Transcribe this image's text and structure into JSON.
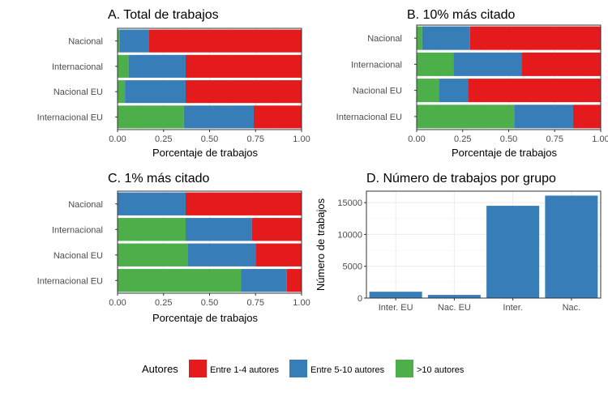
{
  "colors": {
    "c1": "#E41A1C",
    "c2": "#377EB8",
    "c3": "#4DAF4A"
  },
  "legend": {
    "title": "Autores",
    "items": [
      {
        "label": "Entre 1-4 autores",
        "color": "#E41A1C"
      },
      {
        "label": "Entre 5-10 autores",
        "color": "#377EB8"
      },
      {
        "label": ">10 autores",
        "color": "#4DAF4A"
      }
    ]
  },
  "chart_data": [
    {
      "type": "bar",
      "title": "A. Total de trabajos",
      "orientation": "horizontal",
      "stacked": true,
      "categories": [
        "Nacional",
        "Internacional",
        "Nacional EU",
        "Internacional EU"
      ],
      "series": [
        {
          "name": ">10 autores",
          "values": [
            0.01,
            0.06,
            0.04,
            0.36
          ]
        },
        {
          "name": "Entre 5-10 autores",
          "values": [
            0.16,
            0.31,
            0.33,
            0.38
          ]
        },
        {
          "name": "Entre 1-4 autores",
          "values": [
            0.83,
            0.63,
            0.63,
            0.26
          ]
        }
      ],
      "xlabel": "Porcentaje de trabajos",
      "xticks": [
        "0.00",
        "0.25",
        "0.50",
        "0.75",
        "1.00"
      ],
      "xlim": [
        0,
        1
      ]
    },
    {
      "type": "bar",
      "title": "B. 10% más citado",
      "orientation": "horizontal",
      "stacked": true,
      "categories": [
        "Nacional",
        "Internacional",
        "Nacional EU",
        "Internacional EU"
      ],
      "series": [
        {
          "name": ">10 autores",
          "values": [
            0.03,
            0.2,
            0.12,
            0.53
          ]
        },
        {
          "name": "Entre 5-10 autores",
          "values": [
            0.26,
            0.37,
            0.16,
            0.32
          ]
        },
        {
          "name": "Entre 1-4 autores",
          "values": [
            0.71,
            0.43,
            0.72,
            0.15
          ]
        }
      ],
      "xlabel": "Porcentaje de trabajos",
      "xticks": [
        "0.00",
        "0.25",
        "0.50",
        "0.75",
        "1.00"
      ],
      "xlim": [
        0,
        1
      ]
    },
    {
      "type": "bar",
      "title": "C. 1% más citado",
      "orientation": "horizontal",
      "stacked": true,
      "categories": [
        "Nacional",
        "Internacional",
        "Nacional EU",
        "Internacional EU"
      ],
      "series": [
        {
          "name": ">10 autores",
          "values": [
            0.0,
            0.37,
            0.38,
            0.67
          ]
        },
        {
          "name": "Entre 5-10 autores",
          "values": [
            0.37,
            0.36,
            0.37,
            0.25
          ]
        },
        {
          "name": "Entre 1-4 autores",
          "values": [
            0.63,
            0.27,
            0.25,
            0.08
          ]
        }
      ],
      "xlabel": "Porcentaje de trabajos",
      "xticks": [
        "0.00",
        "0.25",
        "0.50",
        "0.75",
        "1.00"
      ],
      "xlim": [
        0,
        1
      ]
    },
    {
      "type": "bar",
      "title": "D. Número de trabajos por grupo",
      "orientation": "vertical",
      "categories": [
        "Inter. EU",
        "Nac. EU",
        "Inter.",
        "Nac."
      ],
      "values": [
        1000,
        500,
        14500,
        16100
      ],
      "ylabel": "Número de trabajos",
      "yticks": [
        "0",
        "5000",
        "10000",
        "15000"
      ],
      "ylim": [
        0,
        16800
      ],
      "color": "#377EB8"
    }
  ]
}
